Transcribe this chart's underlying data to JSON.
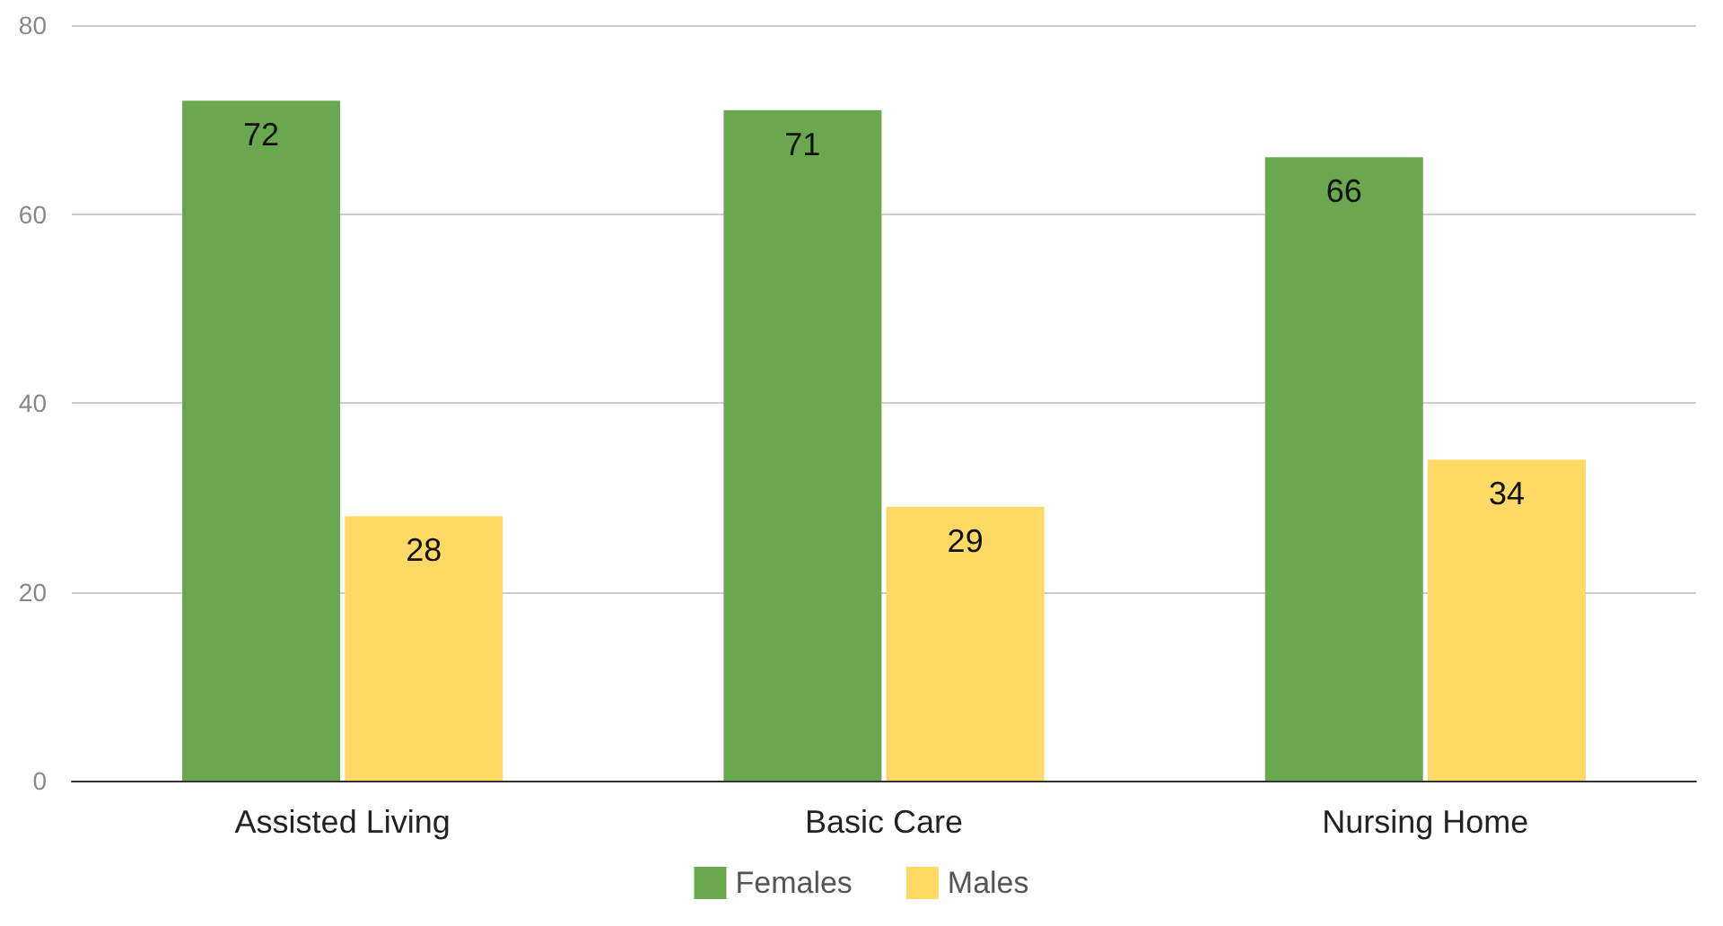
{
  "chart_data": {
    "type": "bar",
    "categories": [
      "Assisted Living",
      "Basic Care",
      "Nursing Home"
    ],
    "series": [
      {
        "name": "Females",
        "color": "#6aa84f",
        "values": [
          72,
          71,
          66
        ]
      },
      {
        "name": "Males",
        "color": "#ffd966",
        "values": [
          28,
          29,
          34
        ]
      }
    ],
    "ylim": [
      0,
      80
    ],
    "yticks": [
      0,
      20,
      40,
      60,
      80
    ],
    "grid": "y",
    "legend": "bottom",
    "data_labels": true
  }
}
